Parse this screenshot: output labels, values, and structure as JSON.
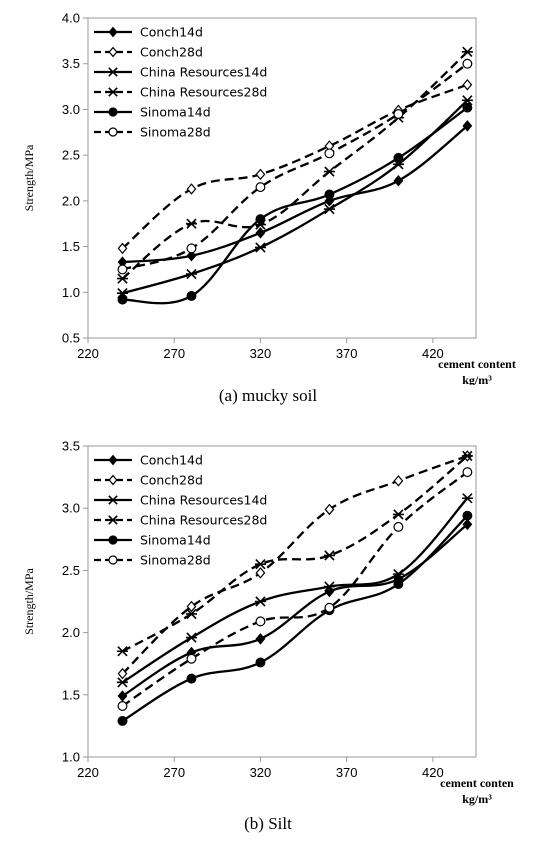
{
  "chart_data": [
    {
      "type": "line",
      "caption": "(a) mucky soil",
      "ylabel": "Strength/MPa",
      "xlabel_line1": "cement content",
      "xlabel_line2": "kg/m³",
      "xlim": [
        220,
        445
      ],
      "ylim": [
        0.5,
        4.0
      ],
      "xticks": [
        220,
        270,
        320,
        370,
        420
      ],
      "yticks": [
        "0.5",
        "1.0",
        "1.5",
        "2.0",
        "2.5",
        "3.0",
        "3.5",
        "4.0"
      ],
      "x": [
        240,
        280,
        320,
        360,
        400,
        440
      ],
      "series": [
        {
          "name": "Conch14d",
          "marker": "diamond-filled",
          "dash": false,
          "values": [
            1.33,
            1.4,
            1.65,
            2.0,
            2.22,
            2.82
          ]
        },
        {
          "name": "Conch28d",
          "marker": "diamond-open",
          "dash": true,
          "values": [
            1.48,
            2.13,
            2.29,
            2.6,
            2.99,
            3.27
          ]
        },
        {
          "name": "China Resources14d",
          "marker": "star",
          "dash": false,
          "values": [
            0.99,
            1.2,
            1.49,
            1.91,
            2.4,
            3.1
          ]
        },
        {
          "name": "China Resources28d",
          "marker": "star",
          "dash": true,
          "values": [
            1.15,
            1.75,
            1.74,
            2.32,
            2.91,
            3.63
          ]
        },
        {
          "name": "Sinoma14d",
          "marker": "circle-filled",
          "dash": false,
          "values": [
            0.92,
            0.96,
            1.8,
            2.07,
            2.47,
            3.02
          ]
        },
        {
          "name": "Sinoma28d",
          "marker": "circle-open",
          "dash": true,
          "values": [
            1.25,
            1.48,
            2.15,
            2.52,
            2.95,
            3.5
          ]
        }
      ]
    },
    {
      "type": "line",
      "caption": "(b) Silt",
      "ylabel": "Strength/MPa",
      "xlabel_line1": "cement conten",
      "xlabel_line2": "kg/m³",
      "xlim": [
        220,
        445
      ],
      "ylim": [
        1.0,
        3.5
      ],
      "xticks": [
        220,
        270,
        320,
        370,
        420
      ],
      "yticks": [
        "1.0",
        "1.5",
        "2.0",
        "2.5",
        "3.0",
        "3.5"
      ],
      "x": [
        240,
        280,
        320,
        360,
        400,
        440
      ],
      "series": [
        {
          "name": "Conch14d",
          "marker": "diamond-filled",
          "dash": false,
          "values": [
            1.49,
            1.84,
            1.95,
            2.33,
            2.43,
            2.87
          ]
        },
        {
          "name": "Conch28d",
          "marker": "diamond-open",
          "dash": true,
          "values": [
            1.67,
            2.21,
            2.48,
            2.99,
            3.22,
            3.42
          ]
        },
        {
          "name": "China Resources14d",
          "marker": "star",
          "dash": false,
          "values": [
            1.6,
            1.96,
            2.25,
            2.37,
            2.47,
            3.08
          ]
        },
        {
          "name": "China Resources28d",
          "marker": "star",
          "dash": true,
          "values": [
            1.85,
            2.15,
            2.55,
            2.62,
            2.95,
            3.42
          ]
        },
        {
          "name": "Sinoma14d",
          "marker": "circle-filled",
          "dash": false,
          "values": [
            1.29,
            1.63,
            1.76,
            2.18,
            2.39,
            2.94
          ]
        },
        {
          "name": "Sinoma28d",
          "marker": "circle-open",
          "dash": true,
          "values": [
            1.41,
            1.79,
            2.09,
            2.2,
            2.85,
            3.29
          ]
        }
      ]
    }
  ]
}
